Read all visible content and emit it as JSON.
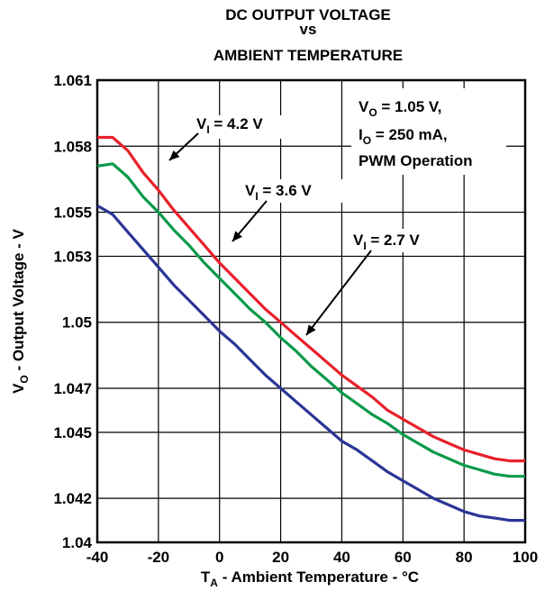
{
  "chart_data": {
    "type": "line",
    "title": [
      "DC OUTPUT VOLTAGE",
      "vs",
      "AMBIENT TEMPERATURE"
    ],
    "xlabel": {
      "main": "T",
      "sub": "A",
      "rest": " - Ambient Temperature - °C"
    },
    "ylabel": {
      "main": "V",
      "sub": "O",
      "rest": " - Output Voltage - V"
    },
    "xlim": [
      -40,
      100
    ],
    "ylim": [
      1.04,
      1.061
    ],
    "x_ticks": [
      -40,
      -20,
      0,
      20,
      40,
      60,
      80,
      100
    ],
    "x_tick_labels": [
      "-40",
      "-20",
      "0",
      "20",
      "40",
      "60",
      "80",
      "100"
    ],
    "y_ticks": [
      1.04,
      1.042,
      1.045,
      1.047,
      1.05,
      1.053,
      1.055,
      1.058,
      1.061
    ],
    "y_tick_labels": [
      "1.04",
      "1.042",
      "1.045",
      "1.047",
      "1.05",
      "1.053",
      "1.055",
      "1.058",
      "1.061"
    ],
    "grid": true,
    "conditions": [
      {
        "main": "V",
        "sub": "O",
        "rest": " = 1.05 V,"
      },
      {
        "main": "I",
        "sub": "O",
        "rest": " = 250 mA,"
      },
      {
        "main": "PWM Operation",
        "sub": "",
        "rest": ""
      }
    ],
    "series": [
      {
        "label": {
          "main": "V",
          "sub": "I",
          "rest": " = 4.2 V"
        },
        "color": "#e8202a",
        "x": [
          -40,
          -35,
          -30,
          -25,
          -20,
          -15,
          -10,
          -5,
          0,
          5,
          10,
          15,
          20,
          25,
          30,
          35,
          40,
          45,
          50,
          55,
          60,
          65,
          70,
          75,
          80,
          85,
          90,
          95,
          100
        ],
        "y": [
          1.0584,
          1.0584,
          1.0578,
          1.0568,
          1.056,
          1.0551,
          1.0543,
          1.0535,
          1.0527,
          1.052,
          1.0513,
          1.0506,
          1.05,
          1.0494,
          1.0488,
          1.0482,
          1.0476,
          1.0471,
          1.0466,
          1.046,
          1.0456,
          1.0452,
          1.0448,
          1.0445,
          1.0442,
          1.044,
          1.0438,
          1.0437,
          1.0437
        ]
      },
      {
        "label": {
          "main": "V",
          "sub": "I",
          "rest": " = 3.6 V"
        },
        "color": "#0a9a4a",
        "x": [
          -40,
          -35,
          -30,
          -25,
          -20,
          -15,
          -10,
          -5,
          0,
          5,
          10,
          15,
          20,
          25,
          30,
          35,
          40,
          45,
          50,
          55,
          60,
          65,
          70,
          75,
          80,
          85,
          90,
          95,
          100
        ],
        "y": [
          1.0571,
          1.0572,
          1.0566,
          1.0557,
          1.055,
          1.0542,
          1.0535,
          1.0527,
          1.052,
          1.0513,
          1.0506,
          1.05,
          1.0493,
          1.0487,
          1.048,
          1.0474,
          1.0468,
          1.0463,
          1.0458,
          1.0454,
          1.0449,
          1.0445,
          1.0441,
          1.0438,
          1.0435,
          1.0433,
          1.0431,
          1.043,
          1.043
        ]
      },
      {
        "label": {
          "main": "V",
          "sub": "I",
          "rest": " = 2.7 V"
        },
        "color": "#2b3596",
        "x": [
          -40,
          -35,
          -30,
          -25,
          -20,
          -15,
          -10,
          -5,
          0,
          5,
          10,
          15,
          20,
          25,
          30,
          35,
          40,
          45,
          50,
          55,
          60,
          65,
          70,
          75,
          80,
          85,
          90,
          95,
          100
        ],
        "y": [
          1.0553,
          1.0549,
          1.0541,
          1.0533,
          1.0525,
          1.0517,
          1.051,
          1.0503,
          1.0496,
          1.049,
          1.0483,
          1.0476,
          1.047,
          1.0464,
          1.0458,
          1.0452,
          1.0446,
          1.0442,
          1.0437,
          1.0432,
          1.0428,
          1.0424,
          1.042,
          1.0417,
          1.0414,
          1.0412,
          1.0411,
          1.041,
          1.041
        ]
      }
    ]
  }
}
